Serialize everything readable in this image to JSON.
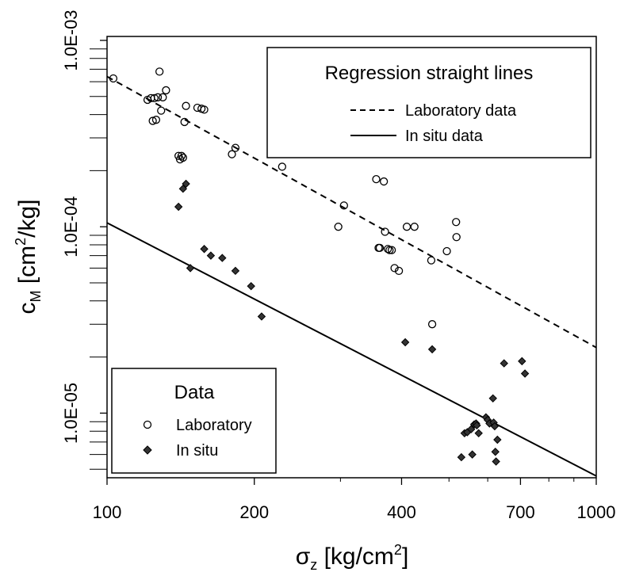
{
  "chart_data": {
    "type": "scatter",
    "xscale": "log",
    "yscale": "log",
    "xlim": [
      100,
      1000
    ],
    "ylim": [
      4.5e-06,
      0.00105
    ],
    "x_ticks": [
      100,
      200,
      400,
      700,
      1000
    ],
    "x_tick_labels": [
      "100",
      "200",
      "400",
      "700",
      "1000"
    ],
    "y_ticks": [
      1e-05,
      0.0001,
      0.001
    ],
    "y_tick_labels": [
      "1.0E-05",
      "1.0E-04",
      "1.0E-03"
    ],
    "xlabel": {
      "main": "σ",
      "sub": "z",
      "rest": " [kg/cm",
      "sup": "2",
      "end": "]"
    },
    "ylabel": {
      "main": "c",
      "sub": "M",
      "rest": " [cm",
      "sup": "2",
      "end": "/kg]"
    },
    "grid": false,
    "series": [
      {
        "name": "Laboratory",
        "marker": "open-circle",
        "points": [
          [
            103,
            0.000625
          ],
          [
            121,
            0.00048
          ],
          [
            123,
            0.00049
          ],
          [
            124,
            0.00037
          ],
          [
            125,
            0.00049
          ],
          [
            126,
            0.000375
          ],
          [
            127,
            0.000495
          ],
          [
            128,
            0.00068
          ],
          [
            129,
            0.00042
          ],
          [
            130,
            0.000495
          ],
          [
            132,
            0.00054
          ],
          [
            140,
            0.00024
          ],
          [
            141,
            0.00023
          ],
          [
            142,
            0.00024
          ],
          [
            143,
            0.000235
          ],
          [
            144,
            0.000365
          ],
          [
            145,
            0.000445
          ],
          [
            153,
            0.000435
          ],
          [
            156,
            0.00043
          ],
          [
            158,
            0.000425
          ],
          [
            180,
            0.000245
          ],
          [
            183,
            0.000265
          ],
          [
            228,
            0.00021
          ],
          [
            297,
            0.0001
          ],
          [
            305,
            0.00013
          ],
          [
            355,
            0.00018
          ],
          [
            359,
            7.7e-05
          ],
          [
            361,
            7.7e-05
          ],
          [
            368,
            0.000175
          ],
          [
            370,
            9.4e-05
          ],
          [
            375,
            7.6e-05
          ],
          [
            378,
            7.5e-05
          ],
          [
            382,
            7.5e-05
          ],
          [
            387,
            6e-05
          ],
          [
            395,
            5.8e-05
          ],
          [
            410,
            0.0001
          ],
          [
            425,
            0.0001
          ],
          [
            460,
            6.6e-05
          ],
          [
            462,
            3e-05
          ],
          [
            495,
            7.4e-05
          ],
          [
            517,
            0.000106
          ],
          [
            518,
            8.8e-05
          ]
        ]
      },
      {
        "name": "In situ",
        "marker": "filled-diamond",
        "points": [
          [
            140,
            0.000128
          ],
          [
            143,
            0.00016
          ],
          [
            145,
            0.00017
          ],
          [
            148,
            6e-05
          ],
          [
            158,
            7.6e-05
          ],
          [
            163,
            7e-05
          ],
          [
            172,
            6.8e-05
          ],
          [
            183,
            5.8e-05
          ],
          [
            197,
            4.8e-05
          ],
          [
            207,
            3.3e-05
          ],
          [
            407,
            2.4e-05
          ],
          [
            462,
            2.2e-05
          ],
          [
            530,
            5.8e-06
          ],
          [
            538,
            7.8e-06
          ],
          [
            545,
            7.9e-06
          ],
          [
            555,
            8.2e-06
          ],
          [
            558,
            6e-06
          ],
          [
            563,
            8.7e-06
          ],
          [
            568,
            8.8e-06
          ],
          [
            570,
            8.6e-06
          ],
          [
            575,
            7.8e-06
          ],
          [
            595,
            9.5e-06
          ],
          [
            600,
            9.2e-06
          ],
          [
            605,
            8.8e-06
          ],
          [
            615,
            1.2e-05
          ],
          [
            617,
            8.9e-06
          ],
          [
            620,
            8.5e-06
          ],
          [
            622,
            6.2e-06
          ],
          [
            624,
            5.5e-06
          ],
          [
            628,
            7.2e-06
          ],
          [
            648,
            1.85e-05
          ],
          [
            705,
            1.9e-05
          ],
          [
            715,
            1.63e-05
          ]
        ]
      }
    ],
    "regression_lines": [
      {
        "name": "Laboratory data",
        "style": "dashed",
        "x": [
          100,
          1000
        ],
        "y": [
          0.00064,
          2.25e-05
        ]
      },
      {
        "name": "In situ data",
        "style": "solid",
        "x": [
          100,
          1000
        ],
        "y": [
          0.000105,
          4.6e-06
        ]
      }
    ],
    "legends": [
      {
        "title": "Regression straight lines",
        "placement": "top-right",
        "entries": [
          {
            "label": "Laboratory data",
            "style": "dashed"
          },
          {
            "label": "In situ data",
            "style": "solid"
          }
        ]
      },
      {
        "title": "Data",
        "placement": "bottom-left",
        "entries": [
          {
            "label": "Laboratory",
            "marker": "open-circle"
          },
          {
            "label": "In situ",
            "marker": "filled-diamond"
          }
        ]
      }
    ]
  }
}
